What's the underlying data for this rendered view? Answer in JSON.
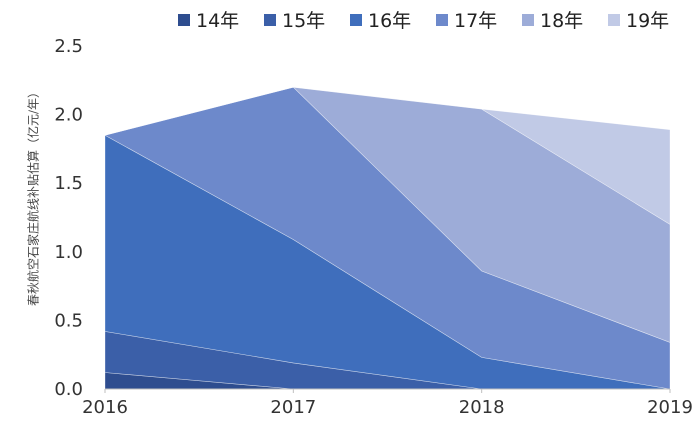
{
  "chart_data": {
    "type": "area",
    "stacked": true,
    "ylabel": "春秋航空石家庄航线补贴估算（亿元/年）",
    "x": [
      "2016",
      "2017",
      "2018",
      "2019"
    ],
    "ylim": [
      0,
      2.5
    ],
    "yticks": [
      "0.0",
      "0.5",
      "1.0",
      "1.5",
      "2.0",
      "2.5"
    ],
    "legend_position": "top",
    "series": [
      {
        "name": "14年",
        "color": "#2e4d8f",
        "values": [
          0.12,
          0.0,
          0.0,
          0.0
        ]
      },
      {
        "name": "15年",
        "color": "#3b5fa8",
        "values": [
          0.3,
          0.19,
          0.0,
          0.0
        ]
      },
      {
        "name": "16年",
        "color": "#3f6ebc",
        "values": [
          1.43,
          0.9,
          0.23,
          0.0
        ]
      },
      {
        "name": "17年",
        "color": "#6d89cb",
        "values": [
          0.0,
          1.11,
          0.63,
          0.34
        ]
      },
      {
        "name": "18年",
        "color": "#9dacd8",
        "values": [
          0.0,
          0.0,
          1.18,
          0.86
        ]
      },
      {
        "name": "19年",
        "color": "#c1cae6",
        "values": [
          0.0,
          0.0,
          0.0,
          0.69
        ]
      }
    ]
  }
}
